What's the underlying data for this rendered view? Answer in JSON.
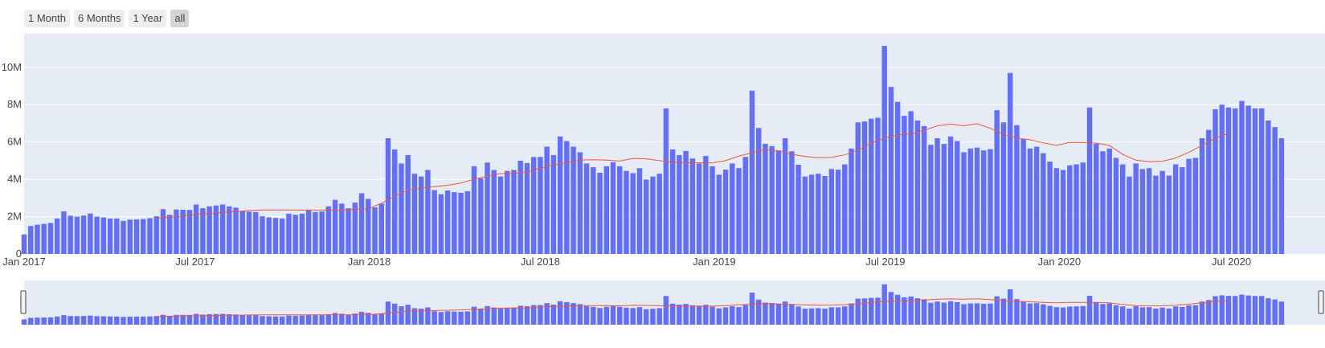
{
  "range_selector": {
    "buttons": [
      {
        "label": "1 Month",
        "active": false
      },
      {
        "label": "6 Months",
        "active": false
      },
      {
        "label": "1 Year",
        "active": false
      },
      {
        "label": "all",
        "active": true
      }
    ]
  },
  "colors": {
    "bar": "#636efa",
    "line": "#ef553b",
    "plot_bg": "#e5ecf6",
    "grid": "#ffffff",
    "active_button": "#d4d4d4",
    "button": "#eeeeee"
  },
  "chart_data": {
    "type": "bar",
    "xaxis": {
      "type": "date",
      "range": [
        "2017-01-01",
        "2020-10-08"
      ],
      "tick_labels": [
        "Jan 2017",
        "Jul 2017",
        "Jan 2018",
        "Jul 2018",
        "Jan 2019",
        "Jul 2019",
        "Jan 2020",
        "Jul 2020"
      ],
      "tick_dates": [
        "2017-01-01",
        "2017-07-01",
        "2018-01-01",
        "2018-07-01",
        "2019-01-01",
        "2019-07-01",
        "2020-01-01",
        "2020-07-01"
      ]
    },
    "yaxis": {
      "range": [
        0,
        11800000
      ],
      "tick_labels": [
        "0",
        "2M",
        "4M",
        "6M",
        "8M",
        "10M"
      ],
      "tick_values": [
        0,
        2000000,
        4000000,
        6000000,
        8000000,
        10000000
      ]
    },
    "grid": true,
    "legend": "none",
    "rangeslider": true,
    "bar_series": {
      "x_start": "2017-01-01",
      "x_step_days": 7,
      "values": [
        1050000,
        1500000,
        1570000,
        1610000,
        1660000,
        1900000,
        2280000,
        2050000,
        2000000,
        2060000,
        2170000,
        2000000,
        1960000,
        1900000,
        1900000,
        1770000,
        1840000,
        1850000,
        1870000,
        1920000,
        2020000,
        2400000,
        2100000,
        2380000,
        2370000,
        2360000,
        2650000,
        2450000,
        2550000,
        2600000,
        2650000,
        2550000,
        2480000,
        2300000,
        2270000,
        2250000,
        2020000,
        1960000,
        1930000,
        1900000,
        2160000,
        2100000,
        2160000,
        2350000,
        2250000,
        2280000,
        2550000,
        2900000,
        2700000,
        2450000,
        2750000,
        3250000,
        2950000,
        2500000,
        2700000,
        6200000,
        5600000,
        4850000,
        5300000,
        4300000,
        4150000,
        4500000,
        3420000,
        3200000,
        3400000,
        3310000,
        3280000,
        3360000,
        4700000,
        4050000,
        4900000,
        4500000,
        4150000,
        4450000,
        4500000,
        5000000,
        4870000,
        5200000,
        5200000,
        5750000,
        5300000,
        6300000,
        6050000,
        5750000,
        5450000,
        4850000,
        4650000,
        4350000,
        4700000,
        4920000,
        4700000,
        4450000,
        4330000,
        4600000,
        3990000,
        4150000,
        4300000,
        7800000,
        5600000,
        5300000,
        5520000,
        5120000,
        4850000,
        5250000,
        4700000,
        4250000,
        4520000,
        4850000,
        4600000,
        5200000,
        8750000,
        6750000,
        5900000,
        5780000,
        5550000,
        6200000,
        5500000,
        4780000,
        4150000,
        4250000,
        4300000,
        4180000,
        4550000,
        4520000,
        4800000,
        5650000,
        7050000,
        7100000,
        7250000,
        7300000,
        11150000,
        8950000,
        8150000,
        7400000,
        7650000,
        7150000,
        6850000,
        5850000,
        6200000,
        5900000,
        6300000,
        6050000,
        5450000,
        5650000,
        5700000,
        5550000,
        5620000,
        7700000,
        7050000,
        9700000,
        6900000,
        6150000,
        5650000,
        5750000,
        5400000,
        4950000,
        4600000,
        4500000,
        4750000,
        4800000,
        4900000,
        7850000,
        5900000,
        5500000,
        5650000,
        5150000,
        4800000,
        4150000,
        4850000,
        4550000,
        4600000,
        4200000,
        4450000,
        4200000,
        4800000,
        4650000,
        5100000,
        5150000,
        6200000,
        6650000,
        7750000,
        8000000,
        7850000,
        7800000,
        8200000,
        7950000,
        7800000,
        7800000,
        7150000,
        6800000,
        6200000
      ]
    },
    "line_series": {
      "x_start": "2017-05-21",
      "x_step_days": 14,
      "values": [
        1920000,
        1970000,
        2030000,
        2110000,
        2170000,
        2230000,
        2270000,
        2330000,
        2360000,
        2360000,
        2360000,
        2350000,
        2350000,
        2350000,
        2350000,
        2390000,
        2420000,
        2720000,
        3090000,
        3420000,
        3530000,
        3610000,
        3680000,
        3800000,
        4010000,
        4160000,
        4310000,
        4310000,
        4380000,
        4600000,
        4760000,
        4890000,
        5040000,
        5050000,
        5030000,
        4980000,
        5120000,
        5100000,
        5000000,
        4920000,
        4890000,
        4890000,
        4880000,
        5000000,
        5250000,
        5420000,
        5600000,
        5520000,
        5340000,
        5230000,
        5160000,
        5180000,
        5310000,
        5550000,
        5930000,
        6210000,
        6370000,
        6430000,
        6620000,
        6870000,
        6960000,
        6870000,
        6980000,
        6730000,
        6420000,
        6200000,
        6120000,
        5950000,
        5820000,
        5980000,
        5970000,
        5940000,
        5820000,
        5340000,
        5020000,
        4950000,
        4970000,
        5140000,
        5450000,
        5820000,
        6200000,
        6460000
      ]
    },
    "rangeslider_line_series": {
      "x_start": "2017-05-21",
      "x_step_days": 14,
      "values": [
        1920000,
        1970000,
        2030000,
        2110000,
        2170000,
        2230000,
        2270000,
        2330000,
        2360000,
        2360000,
        2360000,
        2350000,
        2350000,
        2350000,
        2350000,
        2390000,
        2420000,
        2720000,
        3090000,
        3420000,
        3530000,
        3610000,
        3680000,
        3800000,
        4010000,
        4160000,
        4310000,
        4310000,
        4380000,
        4600000,
        4760000,
        4890000,
        5040000,
        5050000,
        5030000,
        4980000,
        5120000,
        5100000,
        5000000,
        4920000,
        4890000,
        4890000,
        4880000,
        5000000,
        5250000,
        5420000,
        5600000,
        5520000,
        5340000,
        5230000,
        5160000,
        5180000,
        5310000,
        5550000,
        5930000,
        6210000,
        6370000,
        6430000,
        6620000,
        6870000,
        6960000,
        6870000,
        6980000,
        6730000,
        6420000,
        6200000,
        6120000,
        5950000,
        5820000,
        5980000,
        5970000,
        5940000,
        5820000,
        5340000,
        5020000,
        4950000,
        4970000,
        5140000,
        5450000,
        5820000,
        6200000,
        6460000
      ]
    }
  }
}
